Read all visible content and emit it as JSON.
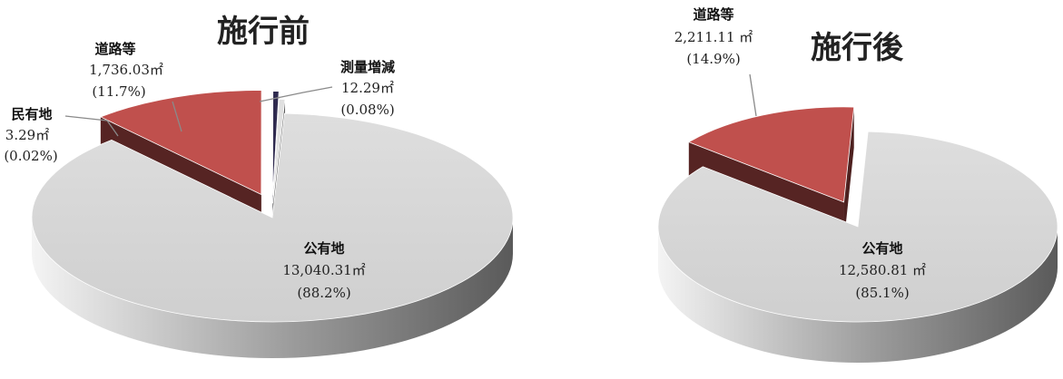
{
  "colors": {
    "public": "#d6d6d6",
    "road": "#c0504d",
    "private": "#2f2a4f",
    "survey": "#e0e0e0"
  },
  "chart_data": [
    {
      "type": "pie",
      "title": "施行前",
      "slices": [
        {
          "name": "公有地",
          "value": 13040.31,
          "value_label": "13,040.31㎡",
          "percent_label": "(88.2%)"
        },
        {
          "name": "道路等",
          "value": 1736.03,
          "value_label": "1,736.03㎡",
          "percent_label": "(11.7%)"
        },
        {
          "name": "民有地",
          "value": 3.29,
          "value_label": "3.29㎡",
          "percent_label": "(0.02%)"
        },
        {
          "name": "測量増減",
          "value": 12.29,
          "value_label": "12.29㎡",
          "percent_label": "(0.08%)"
        }
      ]
    },
    {
      "type": "pie",
      "title": "施行後",
      "slices": [
        {
          "name": "公有地",
          "value": 12580.81,
          "value_label": "12,580.81 ㎡",
          "percent_label": "(85.1%)"
        },
        {
          "name": "道路等",
          "value": 2211.11,
          "value_label": "2,211.11 ㎡",
          "percent_label": "(14.9%)"
        }
      ]
    }
  ]
}
